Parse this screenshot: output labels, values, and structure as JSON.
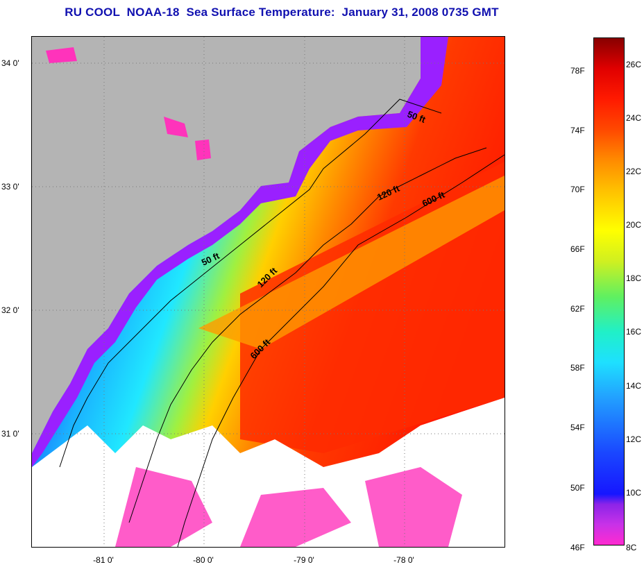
{
  "title": "RU COOL  NOAA-18  Sea Surface Temperature:  January 31, 2008 0735 GMT",
  "map": {
    "latitude_labels": [
      "34 0'",
      "33 0'",
      "32 0'",
      "31 0'"
    ],
    "longitude_labels": [
      "-81 0'",
      "-80 0'",
      "-79 0'",
      "-78 0'"
    ],
    "contours": [
      "50 ft",
      "120 ft",
      "600 ft"
    ],
    "colors": {
      "land": "#b4b4b4",
      "cloud": "#ffffff",
      "near_shore": "#9a20ff",
      "cold": "#1a40ff",
      "mid": "#20d0ff",
      "warm": "#ff8a00",
      "gulf_stream": "#ff1a00"
    }
  },
  "colorbar": {
    "fahrenheit_labels": [
      "78F",
      "74F",
      "70F",
      "66F",
      "62F",
      "58F",
      "54F",
      "50F",
      "46F"
    ],
    "celsius_labels": [
      "26C",
      "24C",
      "22C",
      "20C",
      "18C",
      "16C",
      "14C",
      "12C",
      "10C",
      "8C"
    ],
    "range_c": [
      8,
      27
    ]
  }
}
